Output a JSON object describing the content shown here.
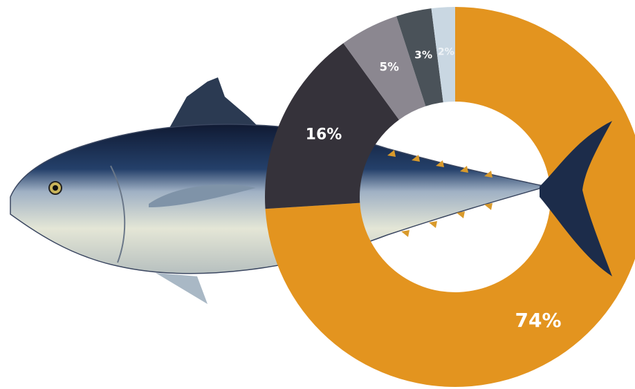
{
  "chart_data": {
    "type": "donut",
    "values": [
      74,
      16,
      5,
      3,
      2
    ],
    "value_labels": [
      "74%",
      "16%",
      "5%",
      "3%",
      "2%"
    ],
    "colors": [
      "#e3941f",
      "#35323a",
      "#8b8790",
      "#4a5259",
      "#c9d7e2"
    ]
  }
}
